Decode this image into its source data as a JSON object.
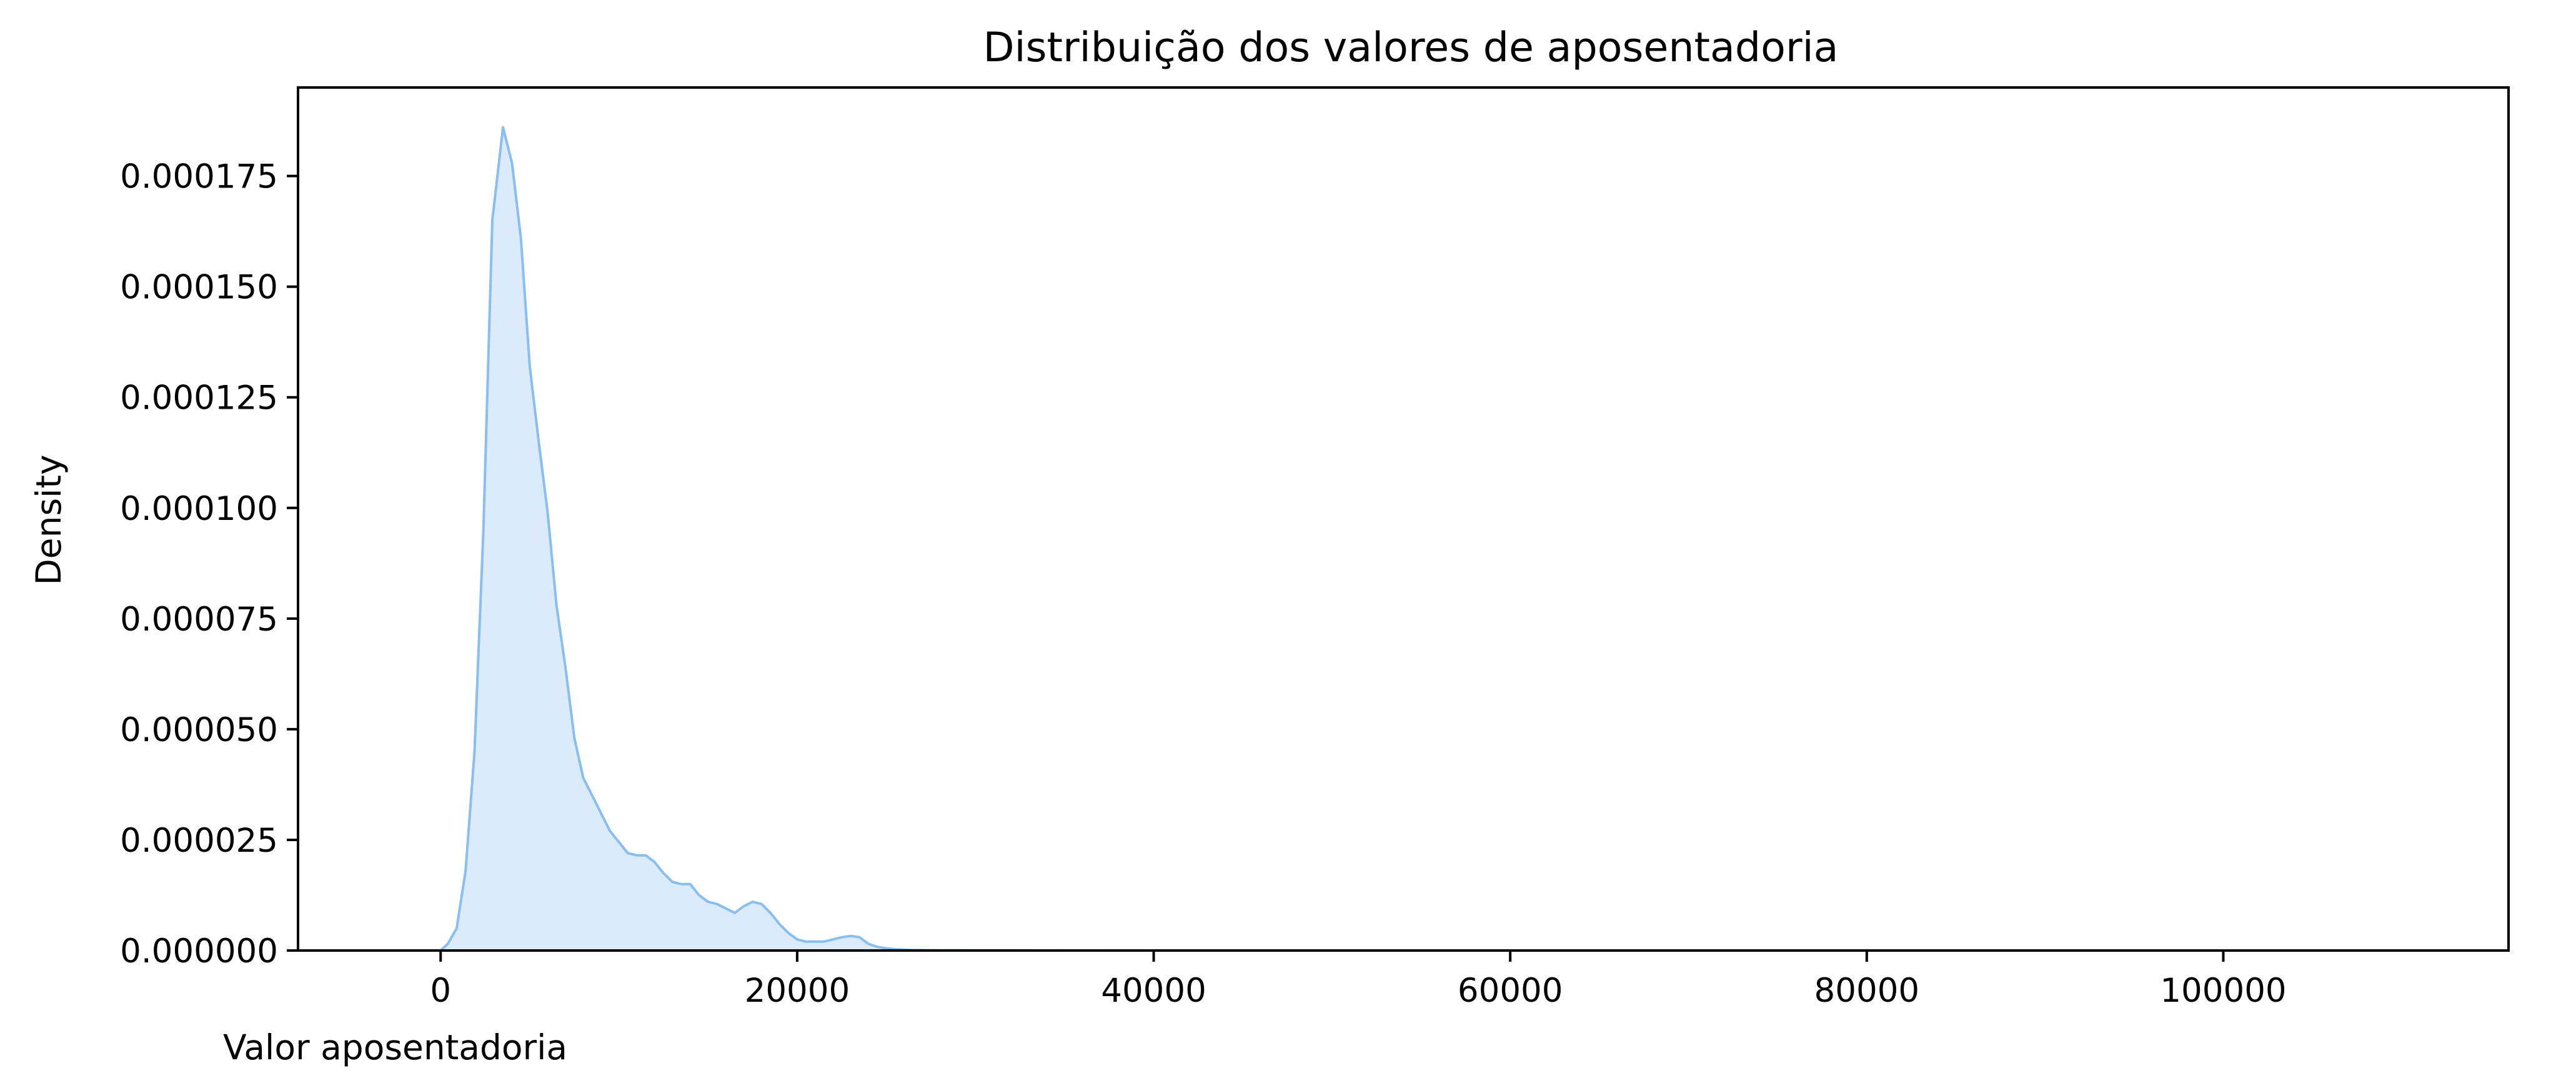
{
  "chart_data": {
    "type": "area",
    "title": "Distribuição dos valores de aposentadoria",
    "xlabel": "Valor aposentadoria",
    "ylabel": "Density",
    "xlim": [
      -8000,
      116000
    ],
    "ylim": [
      0,
      0.000195
    ],
    "xticks": [
      0,
      20000,
      40000,
      60000,
      80000,
      100000
    ],
    "xtick_labels": [
      "0",
      "20000",
      "40000",
      "60000",
      "80000",
      "100000"
    ],
    "yticks": [
      0,
      2.5e-05,
      5e-05,
      7.5e-05,
      0.0001,
      0.000125,
      0.00015,
      0.000175
    ],
    "ytick_labels": [
      "0.000000",
      "0.000025",
      "0.000050",
      "0.000075",
      "0.000100",
      "0.000125",
      "0.000150",
      "0.000175"
    ],
    "grid": false,
    "legend": "none",
    "colors": {
      "line": "#89bff0",
      "fill": "#dcebfb"
    },
    "series": [
      {
        "x": [
          0,
          400,
          900,
          1400,
          1900,
          2400,
          2900,
          3500,
          4000,
          4500,
          5000,
          5500,
          6000,
          6500,
          7000,
          7500,
          8000,
          8500,
          9000,
          9500,
          10000,
          10500,
          11000,
          11500,
          12000,
          12500,
          13000,
          13500,
          14000,
          14500,
          15000,
          15500,
          16000,
          16500,
          17000,
          17500,
          18000,
          18500,
          19000,
          19500,
          20000,
          20500,
          21000,
          21500,
          22000,
          22500,
          23000,
          23500,
          24000,
          24500,
          25000,
          25500,
          26000,
          26500,
          27000,
          28000,
          30000,
          35000,
          40000,
          50000,
          60000,
          70000,
          80000,
          90000,
          100000,
          110000
        ],
        "y": [
          0.0,
          1.5e-06,
          5e-06,
          1.8e-05,
          4.5e-05,
          9.5e-05,
          0.000165,
          0.000186,
          0.000178,
          0.000161,
          0.000132,
          0.000115,
          9.9e-05,
          7.8e-05,
          6.4e-05,
          4.8e-05,
          3.9e-05,
          3.5e-05,
          3.1e-05,
          2.7e-05,
          2.45e-05,
          2.2e-05,
          2.15e-05,
          2.15e-05,
          2e-05,
          1.75e-05,
          1.55e-05,
          1.5e-05,
          1.5e-05,
          1.25e-05,
          1.1e-05,
          1.05e-05,
          9.5e-06,
          8.5e-06,
          1e-05,
          1.1e-05,
          1.05e-05,
          8.5e-06,
          6e-06,
          4e-06,
          2.5e-06,
          2e-06,
          2e-06,
          2e-06,
          2.5e-06,
          3e-06,
          3.3e-06,
          3e-06,
          1.5e-06,
          8e-07,
          5e-07,
          3e-07,
          2e-07,
          1e-07,
          8e-08,
          5e-08,
          3e-08,
          1e-08,
          0.0,
          0.0,
          0.0,
          0.0,
          0.0,
          0.0,
          0.0,
          0.0
        ]
      }
    ]
  }
}
